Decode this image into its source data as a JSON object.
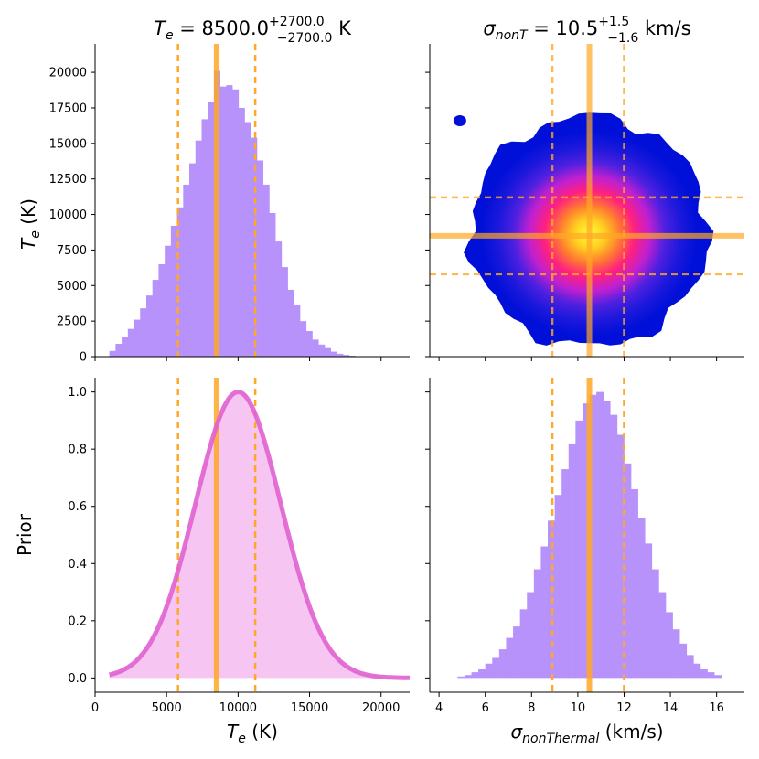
{
  "chart_data": [
    {
      "type": "bar",
      "panel": "top-left",
      "description_label": "Te marginal posterior histogram",
      "title": {
        "prefix": "T",
        "prefix_sub": "e",
        "value": " = 8500.0",
        "sup": "+2700.0",
        "sub": "−2700.0",
        "unit": " K"
      },
      "ylabel": {
        "main": "T",
        "sub": "e",
        "unit": " (K)"
      },
      "ylim": [
        0,
        22000
      ],
      "yticks": [
        "0",
        "2500",
        "5000",
        "7500",
        "10000",
        "12500",
        "15000",
        "17500",
        "20000"
      ],
      "ytick_values": [
        0,
        2500,
        5000,
        7500,
        10000,
        12500,
        15000,
        17500,
        20000
      ],
      "xlim": [
        0,
        22000
      ],
      "bin_width": 430,
      "bin_start": 1000,
      "values": [
        400,
        900,
        1350,
        1950,
        2600,
        3400,
        4300,
        5400,
        6500,
        7800,
        9200,
        10500,
        12100,
        13600,
        15200,
        16700,
        17900,
        20100,
        19000,
        19100,
        18800,
        17500,
        16500,
        15400,
        13800,
        12100,
        10100,
        8100,
        6300,
        4700,
        3600,
        2500,
        1800,
        1200,
        850,
        600,
        350,
        200,
        120,
        60,
        30
      ],
      "median": 8500,
      "lower": 5800,
      "upper": 11200
    },
    {
      "type": "heatmap",
      "panel": "top-right",
      "description_label": "joint posterior density of sigma_nonT and Te",
      "title": {
        "prefix": "σ",
        "prefix_sub": "nonT",
        "value": " = 10.5",
        "sup": "+1.5",
        "sub": "−1.6",
        "unit": " km/s"
      },
      "xlim": [
        3.6,
        17.2
      ],
      "ylim": [
        0,
        22000
      ],
      "median_x": 10.5,
      "lower_x": 8.9,
      "upper_x": 12.0,
      "median_y": 8500,
      "lower_y": 5800,
      "upper_y": 11200
    },
    {
      "type": "area",
      "panel": "bottom-left",
      "description_label": "Te prior (normalised Gaussian)",
      "ylabel": "Prior",
      "xlabel": {
        "main": "T",
        "sub": "e",
        "unit": " (K)"
      },
      "xlim": [
        0,
        22000
      ],
      "ylim": [
        -0.05,
        1.05
      ],
      "xticks": [
        "0",
        "5000",
        "10000",
        "15000",
        "20000"
      ],
      "xtick_values": [
        0,
        5000,
        10000,
        15000,
        20000
      ],
      "yticks": [
        "0.0",
        "0.2",
        "0.4",
        "0.6",
        "0.8",
        "1.0"
      ],
      "ytick_values": [
        0.0,
        0.2,
        0.4,
        0.6,
        0.8,
        1.0
      ],
      "prior_mean": 10000,
      "prior_sigma": 3000,
      "x_start": 1000,
      "median": 8500,
      "lower": 5800,
      "upper": 11200
    },
    {
      "type": "bar",
      "panel": "bottom-right",
      "description_label": "sigma_nonThermal marginal posterior histogram",
      "xlabel": {
        "main": "σ",
        "sub": "nonThermal",
        "unit": " (km/s)"
      },
      "xlim": [
        3.6,
        17.2
      ],
      "ylim": [
        -0.05,
        1.05
      ],
      "xticks": [
        "4",
        "6",
        "8",
        "10",
        "12",
        "14",
        "16"
      ],
      "xtick_values": [
        4,
        6,
        8,
        10,
        12,
        14,
        16
      ],
      "bin_start": 4.8,
      "bin_width": 0.3,
      "values": [
        0.005,
        0.01,
        0.02,
        0.03,
        0.05,
        0.07,
        0.1,
        0.14,
        0.18,
        0.24,
        0.3,
        0.38,
        0.46,
        0.55,
        0.64,
        0.73,
        0.82,
        0.9,
        0.96,
        0.99,
        1.0,
        0.97,
        0.92,
        0.85,
        0.75,
        0.66,
        0.56,
        0.47,
        0.38,
        0.3,
        0.23,
        0.17,
        0.12,
        0.08,
        0.05,
        0.03,
        0.02,
        0.01
      ],
      "median": 10.5,
      "lower": 8.9,
      "upper": 12.0
    }
  ],
  "colors": {
    "hist_fill": "#b48cfb",
    "prior_fill": "#f5c2f0",
    "prior_line": "#e060d0",
    "median_line": "#ffa826",
    "bounds_line": "#ffa826",
    "density_low": "#0010d8",
    "density_high": "#ffff40"
  }
}
